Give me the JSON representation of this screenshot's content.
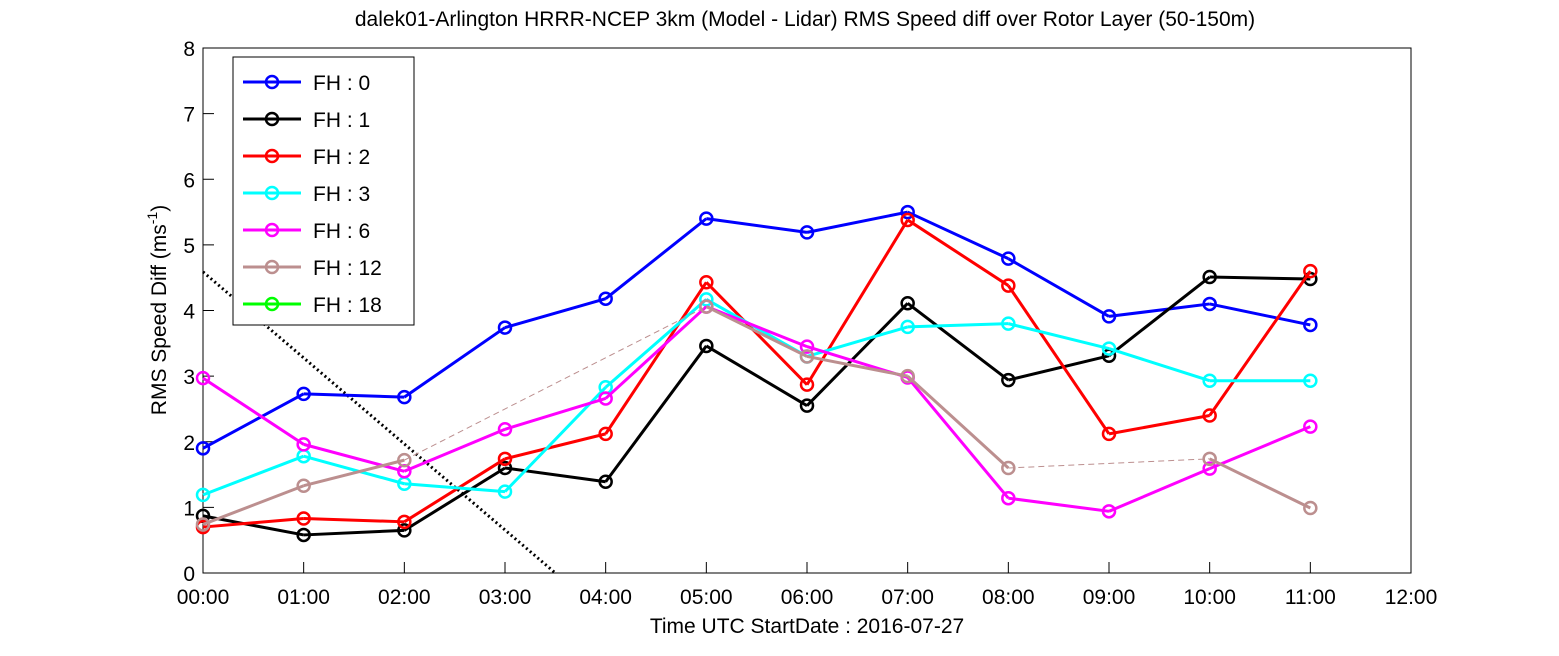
{
  "chart_data": {
    "type": "line",
    "title": "dalek01-Arlington HRRR-NCEP 3km (Model - Lidar) RMS Speed diff over Rotor Layer (50-150m)",
    "xlabel": "Time UTC    StartDate : 2016-07-27",
    "ylabel": "RMS Speed Diff (ms",
    "ylabel_sup": "-1",
    "ylabel_end": ")",
    "x_ticks": [
      "00:00",
      "01:00",
      "02:00",
      "03:00",
      "04:00",
      "05:00",
      "06:00",
      "07:00",
      "08:00",
      "09:00",
      "10:00",
      "11:00",
      "12:00"
    ],
    "y_ticks": [
      "0",
      "1",
      "2",
      "3",
      "4",
      "5",
      "6",
      "7",
      "8"
    ],
    "xlim": [
      0,
      12
    ],
    "ylim": [
      0,
      8
    ],
    "grid": false,
    "legend_position": "top-left",
    "series": [
      {
        "name": "FH : 0",
        "color": "#0000ff",
        "points": [
          [
            0,
            1.9
          ],
          [
            1,
            2.73
          ],
          [
            2,
            2.68
          ],
          [
            3,
            3.74
          ],
          [
            4,
            4.18
          ],
          [
            5,
            5.4
          ],
          [
            6,
            5.19
          ],
          [
            7,
            5.5
          ],
          [
            8,
            4.79
          ],
          [
            9,
            3.91
          ],
          [
            10,
            4.1
          ],
          [
            11,
            3.78
          ]
        ]
      },
      {
        "name": "FH : 1",
        "color": "#000000",
        "points": [
          [
            0,
            0.87
          ],
          [
            1,
            0.58
          ],
          [
            2,
            0.65
          ],
          [
            3,
            1.6
          ],
          [
            4,
            1.39
          ],
          [
            5,
            3.46
          ],
          [
            6,
            2.55
          ],
          [
            7,
            4.11
          ],
          [
            8,
            2.94
          ],
          [
            9,
            3.31
          ],
          [
            10,
            4.51
          ],
          [
            11,
            4.48
          ]
        ]
      },
      {
        "name": "FH : 2",
        "color": "#ff0000",
        "points": [
          [
            0,
            0.7
          ],
          [
            1,
            0.83
          ],
          [
            2,
            0.78
          ],
          [
            3,
            1.74
          ],
          [
            4,
            2.12
          ],
          [
            5,
            4.43
          ],
          [
            6,
            2.87
          ],
          [
            7,
            5.38
          ],
          [
            8,
            4.38
          ],
          [
            9,
            2.12
          ],
          [
            10,
            2.4
          ],
          [
            11,
            4.6
          ]
        ]
      },
      {
        "name": "FH : 3",
        "color": "#00ffff",
        "points": [
          [
            0,
            1.19
          ],
          [
            1,
            1.78
          ],
          [
            2,
            1.36
          ],
          [
            3,
            1.24
          ],
          [
            4,
            2.83
          ],
          [
            5,
            4.17
          ],
          [
            6,
            3.3
          ],
          [
            7,
            3.75
          ],
          [
            8,
            3.8
          ],
          [
            9,
            3.42
          ],
          [
            10,
            2.93
          ],
          [
            11,
            2.93
          ]
        ]
      },
      {
        "name": "FH : 6",
        "color": "#ff00ff",
        "points": [
          [
            0,
            2.97
          ],
          [
            1,
            1.96
          ],
          [
            2,
            1.55
          ],
          [
            3,
            2.19
          ],
          [
            4,
            2.66
          ],
          [
            5,
            4.06
          ],
          [
            6,
            3.45
          ],
          [
            7,
            2.98
          ],
          [
            8,
            1.14
          ],
          [
            9,
            0.94
          ],
          [
            10,
            1.59
          ],
          [
            11,
            2.23
          ]
        ]
      },
      {
        "name": "FH : 12",
        "color": "#bc8f8f",
        "points": [
          [
            0,
            0.74
          ],
          [
            1,
            1.33
          ],
          [
            2,
            1.72
          ],
          [
            5,
            4.06
          ],
          [
            6,
            3.3
          ],
          [
            7,
            3.0
          ],
          [
            8,
            1.6
          ],
          [
            10,
            1.74
          ],
          [
            11,
            0.99
          ]
        ]
      },
      {
        "name": "FH : 18",
        "color": "#00ff00",
        "points": []
      }
    ],
    "trend_line": {
      "color": "#000000",
      "points": [
        [
          -0.1,
          4.72
        ],
        [
          3.5,
          0
        ]
      ]
    }
  }
}
